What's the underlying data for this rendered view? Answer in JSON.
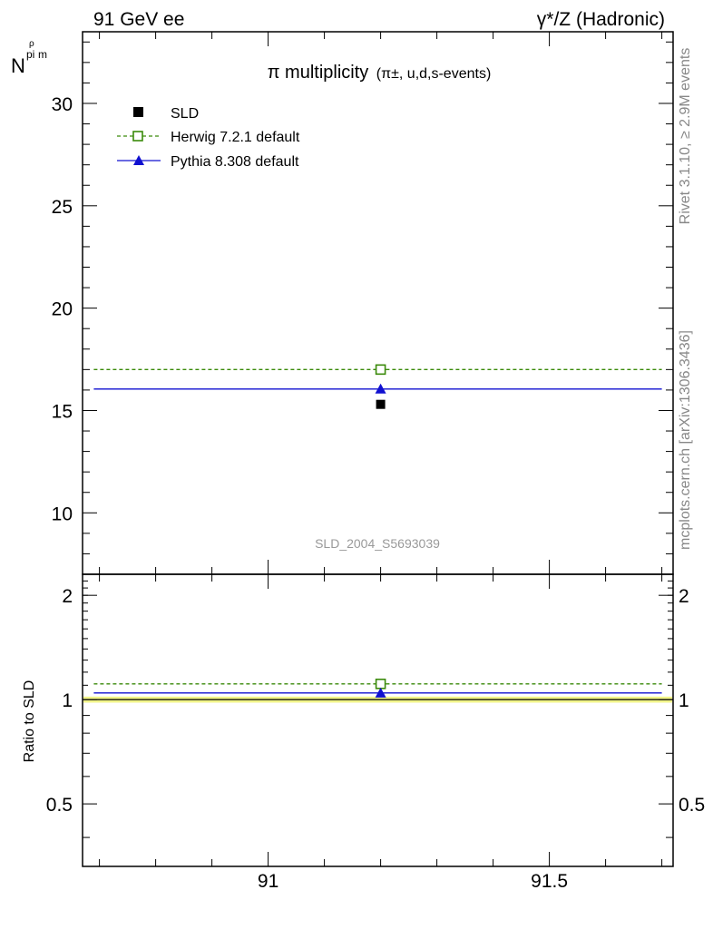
{
  "header": {
    "left": "91 GeV ee",
    "right": "γ*/Z (Hadronic)"
  },
  "side_text": {
    "rivet": "Rivet 3.1.10, ≥ 2.9M events",
    "mcplots": "mcplots.cern.ch [arXiv:1306.3436]"
  },
  "watermark": "SLD_2004_S5693039",
  "chart_data": [
    {
      "type": "scatter",
      "title_main": "π multiplicity",
      "title_sub": "(π±, u,d,s-events)",
      "ylabel_main": "N",
      "ylabel_sub": "pi",
      "ylabel_sup": "ρ",
      "ylabel_sub2": "m",
      "xlim": [
        90.67,
        91.72
      ],
      "ylim": [
        7,
        33.5
      ],
      "yticks": [
        10,
        15,
        20,
        25,
        30
      ],
      "ytick_labels": [
        "10",
        "15",
        "20",
        "25",
        "30"
      ],
      "grid": false,
      "legend_position": "top-left",
      "series": [
        {
          "name": "SLD",
          "kind": "data",
          "color": "#000000",
          "marker": "square-filled",
          "points": [
            {
              "x": 91.2,
              "y": 15.3
            }
          ]
        },
        {
          "name": "Herwig 7.2.1 default",
          "kind": "mc",
          "color": "#3a8a0a",
          "marker": "square-open",
          "dashed": true,
          "points": [
            {
              "x": 91.2,
              "y": 17.0
            }
          ],
          "x_extent": [
            90.69,
            91.7
          ]
        },
        {
          "name": "Pythia 8.308 default",
          "kind": "mc",
          "color": "#1010d0",
          "marker": "triangle-filled",
          "dashed": false,
          "points": [
            {
              "x": 91.2,
              "y": 16.05
            }
          ],
          "x_extent": [
            90.69,
            91.7
          ]
        }
      ]
    },
    {
      "type": "line",
      "ylabel": "Ratio to SLD",
      "xlim": [
        90.67,
        91.72
      ],
      "ylim": [
        0.33,
        2.3
      ],
      "yticks": [
        0.5,
        1,
        2
      ],
      "ytick_labels": [
        "0.5",
        "1",
        "2"
      ],
      "xticks": [
        91,
        91.5
      ],
      "xtick_labels": [
        "91",
        "91.5"
      ],
      "band": {
        "center": 1.0,
        "half_width": 0.02,
        "color": "#f2f58a"
      },
      "series": [
        {
          "name": "Herwig 7.2.1 default",
          "color": "#3a8a0a",
          "marker": "square-open",
          "dashed": true,
          "points": [
            {
              "x": 91.2,
              "y": 1.11
            }
          ]
        },
        {
          "name": "Pythia 8.308 default",
          "color": "#1010d0",
          "marker": "triangle-filled",
          "dashed": false,
          "points": [
            {
              "x": 91.2,
              "y": 1.045
            }
          ]
        }
      ]
    }
  ]
}
